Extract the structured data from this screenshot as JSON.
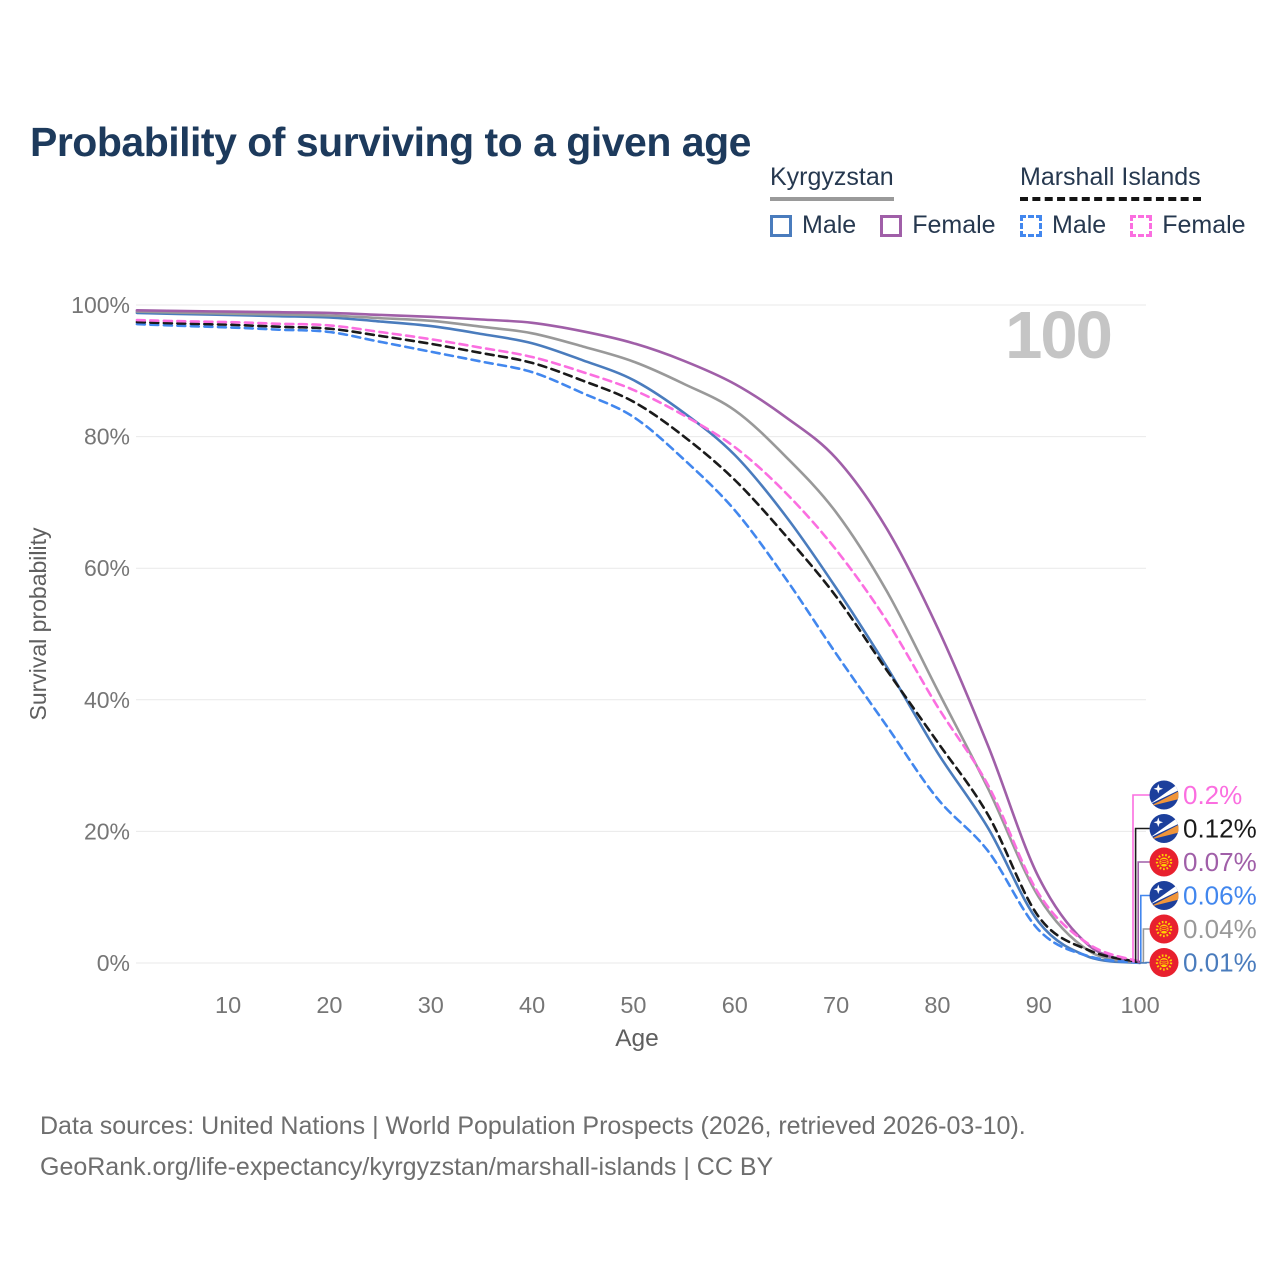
{
  "title": "Probability of surviving to a given age",
  "watermark": "100",
  "legend": {
    "groups": [
      {
        "name": "Kyrgyzstan",
        "line_style": "solid",
        "line_color": "#9a9a9a",
        "items": [
          {
            "label": "Male",
            "color": "#4a7cbd"
          },
          {
            "label": "Female",
            "color": "#a05fa8"
          }
        ]
      },
      {
        "name": "Marshall Islands",
        "line_style": "dashed",
        "line_color": "#141414",
        "items": [
          {
            "label": "Male",
            "color": "#4287ee"
          },
          {
            "label": "Female",
            "color": "#fb6ee0"
          }
        ]
      }
    ]
  },
  "chart_data": {
    "type": "line",
    "title": "Probability of surviving to a given age",
    "xlabel": "Age",
    "ylabel": "Survival probability",
    "xlim": [
      1,
      100
    ],
    "ylim": [
      0,
      100
    ],
    "grid": "horizontal",
    "legend_position": "top-right",
    "x_ticks": [
      10,
      20,
      30,
      40,
      50,
      60,
      70,
      80,
      90,
      100
    ],
    "y_ticks": [
      {
        "value": 0,
        "label": "0%"
      },
      {
        "value": 20,
        "label": "20%"
      },
      {
        "value": 40,
        "label": "40%"
      },
      {
        "value": 60,
        "label": "60%"
      },
      {
        "value": 80,
        "label": "80%"
      },
      {
        "value": 100,
        "label": "100%"
      }
    ],
    "x": [
      1,
      5,
      10,
      15,
      20,
      25,
      30,
      35,
      40,
      45,
      50,
      55,
      60,
      65,
      70,
      75,
      80,
      85,
      90,
      95,
      100
    ],
    "series": [
      {
        "key": "kg_male",
        "name": "Kyrgyzstan Male",
        "country": "Kyrgyzstan",
        "sex": "Male",
        "color": "#4a7cbd",
        "style": "solid",
        "flag": "kyrgyzstan",
        "end_label": "0.01%",
        "values": [
          98.8,
          98.65,
          98.5,
          98.3,
          98.1,
          97.5,
          96.8,
          95.6,
          94.2,
          91.6,
          88.6,
          83.6,
          77.2,
          68.0,
          57.0,
          45.0,
          32.0,
          20.5,
          6.2,
          0.9,
          0.01
        ]
      },
      {
        "key": "kg_all",
        "name": "Kyrgyzstan (both sexes)",
        "country": "Kyrgyzstan",
        "sex": "All",
        "color": "#999999",
        "style": "solid",
        "flag": "kyrgyzstan",
        "end_label": "0.04%",
        "values": [
          99.0,
          98.85,
          98.7,
          98.55,
          98.4,
          98.0,
          97.6,
          96.7,
          95.7,
          93.7,
          91.4,
          88.0,
          84.0,
          77.0,
          68.5,
          56.5,
          41.5,
          26.5,
          10.0,
          1.8,
          0.04
        ]
      },
      {
        "key": "kg_female",
        "name": "Kyrgyzstan Female",
        "country": "Kyrgyzstan",
        "sex": "Female",
        "color": "#a05fa8",
        "style": "solid",
        "flag": "kyrgyzstan",
        "end_label": "0.07%",
        "values": [
          99.2,
          99.1,
          99.0,
          98.9,
          98.8,
          98.5,
          98.2,
          97.8,
          97.3,
          96.0,
          94.2,
          91.5,
          88.0,
          83.0,
          76.7,
          66.0,
          51.0,
          33.0,
          13.0,
          2.6,
          0.07
        ]
      },
      {
        "key": "mi_male",
        "name": "Marshall Islands Male",
        "country": "Marshall Islands",
        "sex": "Male",
        "color": "#4287ee",
        "style": "dashed",
        "flag": "marshall-islands",
        "end_label": "0.06%",
        "values": [
          97.1,
          96.85,
          96.6,
          96.25,
          95.9,
          94.4,
          92.9,
          91.4,
          89.8,
          86.6,
          83.0,
          76.5,
          68.8,
          58.5,
          47.0,
          36.0,
          25.0,
          17.0,
          5.0,
          1.0,
          0.06
        ]
      },
      {
        "key": "mi_all",
        "name": "Marshall Islands (both sexes)",
        "country": "Marshall Islands",
        "sex": "All",
        "color": "#1a1a1a",
        "style": "dashed",
        "flag": "marshall-islands",
        "end_label": "0.12%",
        "values": [
          97.4,
          97.2,
          97.0,
          96.7,
          96.4,
          95.3,
          94.1,
          92.7,
          91.2,
          88.5,
          85.3,
          80.0,
          73.4,
          65.0,
          55.7,
          44.5,
          33.6,
          22.5,
          7.0,
          1.9,
          0.12
        ]
      },
      {
        "key": "mi_female",
        "name": "Marshall Islands Female",
        "country": "Marshall Islands",
        "sex": "Female",
        "color": "#fb6ee0",
        "style": "dashed",
        "flag": "marshall-islands",
        "end_label": "0.2%",
        "values": [
          97.7,
          97.55,
          97.4,
          97.15,
          96.9,
          95.9,
          94.8,
          93.5,
          92.1,
          89.8,
          87.1,
          83.2,
          78.4,
          71.5,
          62.8,
          52.0,
          39.0,
          27.0,
          10.5,
          2.8,
          0.2
        ]
      }
    ],
    "end_labels_top_to_bottom": [
      {
        "series": "mi_female",
        "text": "0.2%",
        "flag": "marshall-islands"
      },
      {
        "series": "mi_all",
        "text": "0.12%",
        "flag": "marshall-islands"
      },
      {
        "series": "kg_female",
        "text": "0.07%",
        "flag": "kyrgyzstan"
      },
      {
        "series": "mi_male",
        "text": "0.06%",
        "flag": "marshall-islands"
      },
      {
        "series": "kg_all",
        "text": "0.04%",
        "flag": "kyrgyzstan"
      },
      {
        "series": "kg_male",
        "text": "0.01%",
        "flag": "kyrgyzstan"
      }
    ]
  },
  "flag_colors": {
    "kyrgyzstan": {
      "field": "#e8202e",
      "sun": "#ffd100"
    },
    "marshall_islands": {
      "field": "#1c3f9c",
      "stripe_white": "#ffffff",
      "stripe_orange": "#f0953a",
      "star": "#ffffff"
    }
  },
  "footer": {
    "line1": "Data sources: United Nations | World Population Prospects (2026, retrieved 2026-03-10).",
    "line2": "GeoRank.org/life-expectancy/kyrgyzstan/marshall-islands | CC BY"
  }
}
